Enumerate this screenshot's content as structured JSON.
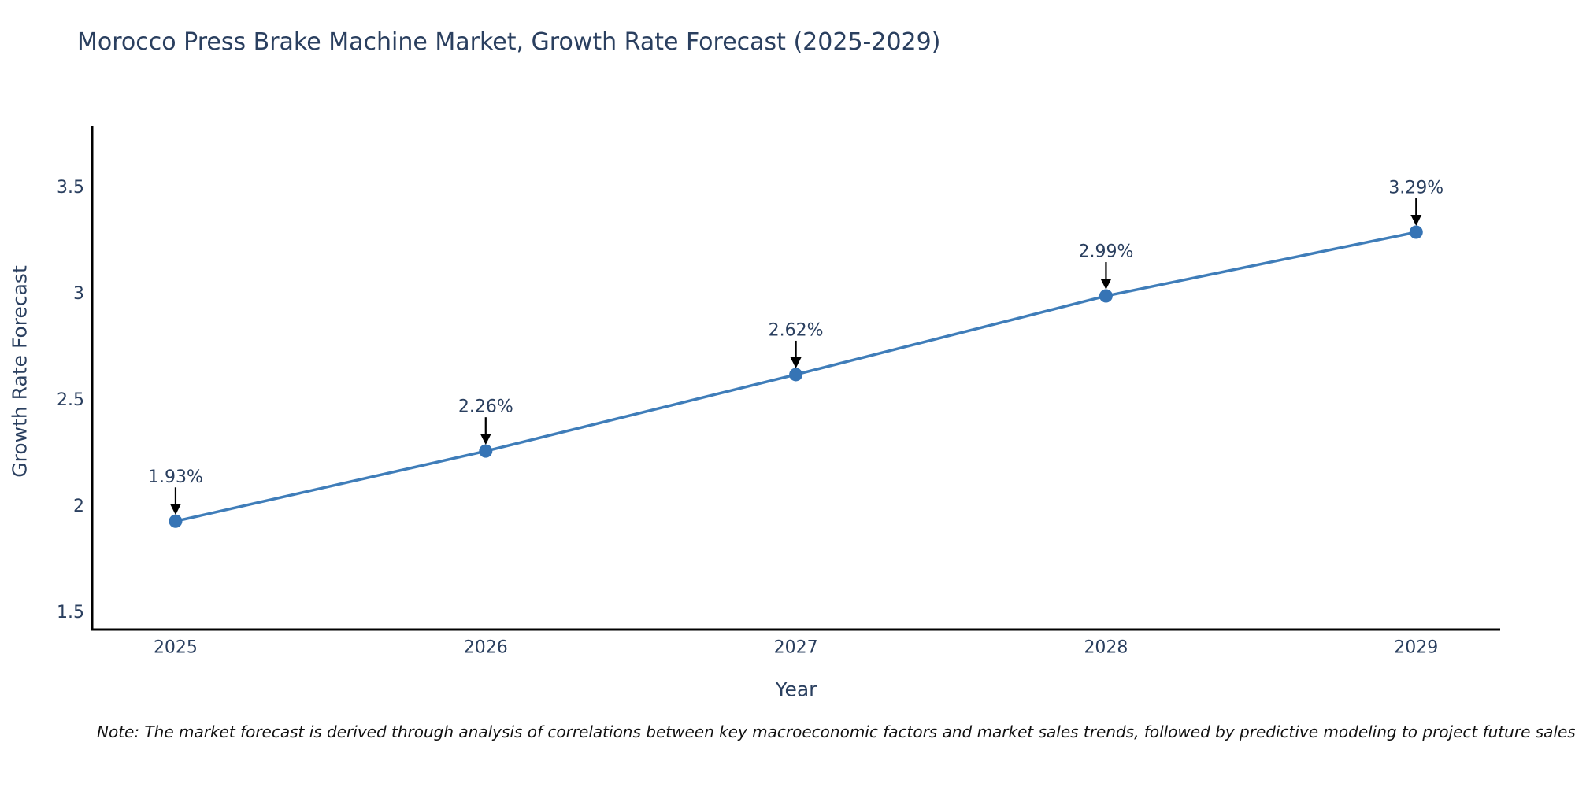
{
  "title": "Morocco Press Brake Machine Market, Growth Rate Forecast (2025-2029)",
  "note": "Note: The market forecast is derived through analysis of correlations between key macroeconomic factors and market sales trends, followed by predictive modeling to project future sales",
  "chart_data": {
    "type": "line",
    "title": "Morocco Press Brake Machine Market, Growth Rate Forecast (2025-2029)",
    "xlabel": "Year",
    "ylabel": "Growth Rate Forecast",
    "categories": [
      "2025",
      "2026",
      "2027",
      "2028",
      "2029"
    ],
    "values": [
      1.93,
      2.26,
      2.62,
      2.99,
      3.29
    ],
    "point_labels": [
      "1.93%",
      "2.26%",
      "2.62%",
      "2.99%",
      "3.29%"
    ],
    "yticks": [
      1.5,
      2,
      2.5,
      3,
      3.5
    ],
    "ytick_labels": [
      "1.5",
      "2",
      "2.5",
      "3",
      "3.5"
    ],
    "ylim": [
      1.42,
      3.79
    ],
    "grid": false,
    "legend": false,
    "annotations": "black downward arrows from labels to markers",
    "colors": {
      "line": "#3f7db9",
      "marker": "#3674b5",
      "axis": "#000000",
      "text": "#2a3f5f",
      "arrow": "#000000",
      "background": "#ffffff"
    }
  }
}
